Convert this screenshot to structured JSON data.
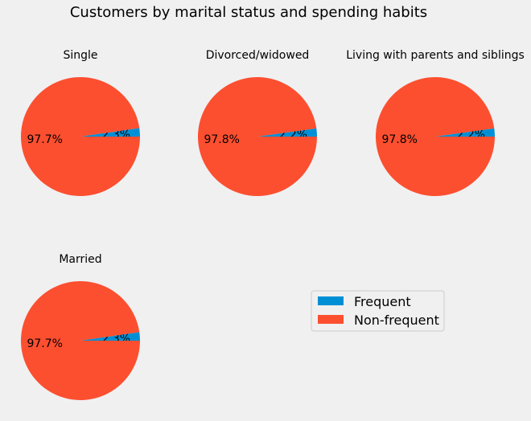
{
  "chart_data": {
    "type": "pie",
    "title": "Customers by marital status and spending habits",
    "legend": {
      "placement": "right",
      "entries": [
        {
          "label": "Frequent",
          "color": "#008fd5"
        },
        {
          "label": "Non-frequent",
          "color": "#fc4f30"
        }
      ]
    },
    "charts": [
      {
        "title": "Single",
        "slices": [
          {
            "label": "Frequent",
            "value": 2.3,
            "pct_label": "2.3%"
          },
          {
            "label": "Non-frequent",
            "value": 97.7,
            "pct_label": "97.7%"
          }
        ]
      },
      {
        "title": "Divorced/widowed",
        "slices": [
          {
            "label": "Frequent",
            "value": 2.2,
            "pct_label": "2.2%"
          },
          {
            "label": "Non-frequent",
            "value": 97.8,
            "pct_label": "97.8%"
          }
        ]
      },
      {
        "title": "Living with parents and siblings",
        "slices": [
          {
            "label": "Frequent",
            "value": 2.2,
            "pct_label": "2.2%"
          },
          {
            "label": "Non-frequent",
            "value": 97.8,
            "pct_label": "97.8%"
          }
        ]
      },
      {
        "title": "Married",
        "slices": [
          {
            "label": "Frequent",
            "value": 2.3,
            "pct_label": "2.3%"
          },
          {
            "label": "Non-frequent",
            "value": 97.7,
            "pct_label": "97.7%"
          }
        ]
      }
    ]
  }
}
